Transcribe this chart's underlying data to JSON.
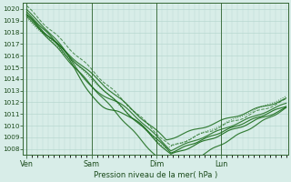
{
  "xlabel": "Pression niveau de la mer( hPa )",
  "ylim": [
    1007.5,
    1020.5
  ],
  "yticks": [
    1008,
    1009,
    1010,
    1011,
    1012,
    1013,
    1014,
    1015,
    1016,
    1017,
    1018,
    1019,
    1020
  ],
  "day_labels": [
    "Ven",
    "Sam",
    "Dim",
    "Lun"
  ],
  "day_positions": [
    0,
    72,
    144,
    216
  ],
  "xlim": [
    -4,
    290
  ],
  "background_color": "#d8ede8",
  "grid_color": "#b8d8d0",
  "line_color": "#1a6b1a",
  "dark_line_color": "#0d4a0d"
}
